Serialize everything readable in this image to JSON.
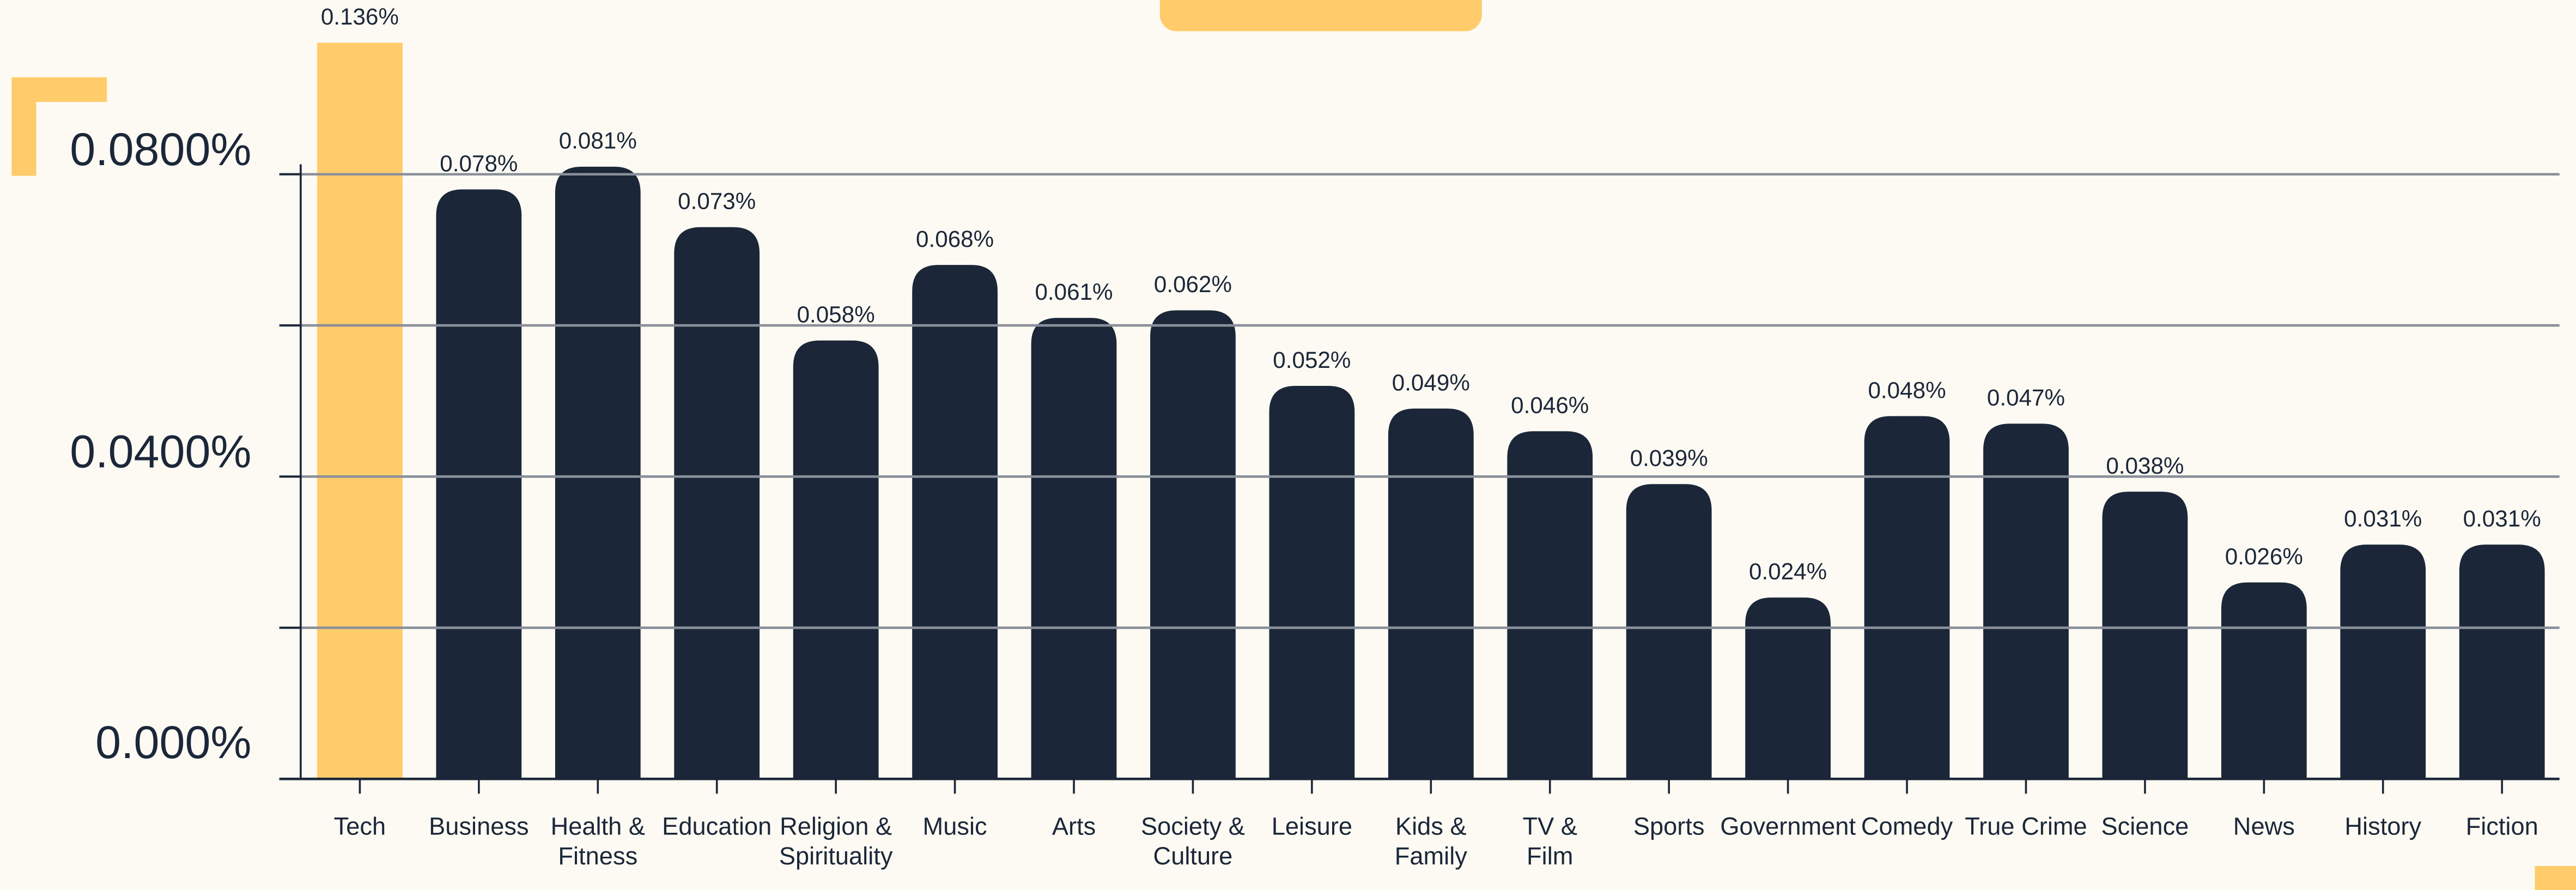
{
  "chart_data": {
    "type": "bar",
    "categories": [
      "Tech",
      "Business",
      "Health &\nFitness",
      "Education",
      "Religion &\nSpirituality",
      "Music",
      "Arts",
      "Society &\nCulture",
      "Leisure",
      "Kids &\nFamily",
      "TV &\nFilm",
      "Sports",
      "Government",
      "Comedy",
      "True Crime",
      "Science",
      "News",
      "History",
      "Fiction"
    ],
    "values": [
      0.136,
      0.078,
      0.081,
      0.073,
      0.058,
      0.068,
      0.061,
      0.062,
      0.052,
      0.049,
      0.046,
      0.039,
      0.024,
      0.048,
      0.047,
      0.038,
      0.026,
      0.031,
      0.031
    ],
    "value_labels": [
      "0.136%",
      "0.078%",
      "0.081%",
      "0.073%",
      "0.058%",
      "0.068%",
      "0.061%",
      "0.062%",
      "0.052%",
      "0.049%",
      "0.046%",
      "0.039%",
      "0.024%",
      "0.048%",
      "0.047%",
      "0.038%",
      "0.026%",
      "0.031%",
      "0.031%"
    ],
    "colors": [
      "#ffcb6b",
      "#1b2739",
      "#1b2739",
      "#1b2739",
      "#1b2739",
      "#1b2739",
      "#1b2739",
      "#1b2739",
      "#1b2739",
      "#1b2739",
      "#1b2739",
      "#1b2739",
      "#1b2739",
      "#1b2739",
      "#1b2739",
      "#1b2739",
      "#1b2739",
      "#1b2739",
      "#1b2739"
    ],
    "ylim": [
      0,
      0.0974
    ],
    "yticks": [
      {
        "value": 0,
        "label": "0.000%"
      },
      {
        "value": 0.04,
        "label": "0.0400%"
      },
      {
        "value": 0.08,
        "label": "0.0800%"
      }
    ],
    "minor_yticks": [
      0.02,
      0.06
    ],
    "grid": true
  }
}
